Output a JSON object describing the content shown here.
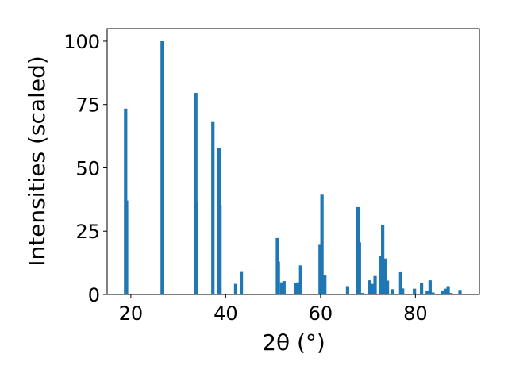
{
  "chart_data": {
    "type": "bar",
    "title": "",
    "xlabel": "2θ (°)",
    "ylabel": "Intensities (scaled)",
    "xlim": [
      15,
      93.5
    ],
    "ylim": [
      0,
      105
    ],
    "xticks": [
      20,
      40,
      60,
      80
    ],
    "yticks": [
      0,
      25,
      50,
      75,
      100
    ],
    "grid": false,
    "legend": "none",
    "bar_width": 0.7,
    "color": "#1f77b4",
    "series": [
      {
        "x": [
          18.9,
          19.1,
          26.6,
          33.7,
          33.9,
          37.3,
          38.6,
          38.8,
          42.1,
          43.3,
          50.9,
          51.1,
          51.8,
          52.3,
          54.8,
          55.3,
          55.8,
          59.9,
          60.3,
          60.9,
          62.9,
          63.3,
          64.7,
          65.7,
          67.9,
          68.2,
          68.9,
          70.3,
          70.8,
          71.5,
          72.6,
          73.1,
          73.6,
          74.1,
          75.1,
          76.9,
          77.3,
          79.8,
          81.3,
          82.5,
          83.1,
          83.7,
          85.7,
          86.3,
          86.9,
          87.5,
          89.4
        ],
        "values": [
          73.4,
          37.1,
          100.0,
          79.6,
          36.2,
          68.1,
          58.0,
          35.4,
          4.2,
          8.9,
          22.3,
          13.0,
          4.8,
          5.3,
          4.5,
          4.8,
          11.5,
          19.6,
          39.4,
          7.5,
          0.3,
          0.3,
          0.2,
          3.3,
          34.5,
          20.6,
          0.6,
          5.6,
          4.2,
          7.3,
          15.3,
          27.6,
          14.2,
          5.5,
          2.1,
          8.8,
          2.4,
          2.3,
          4.6,
          1.5,
          5.6,
          0.8,
          1.6,
          2.3,
          3.3,
          0.6,
          1.8
        ]
      }
    ]
  }
}
